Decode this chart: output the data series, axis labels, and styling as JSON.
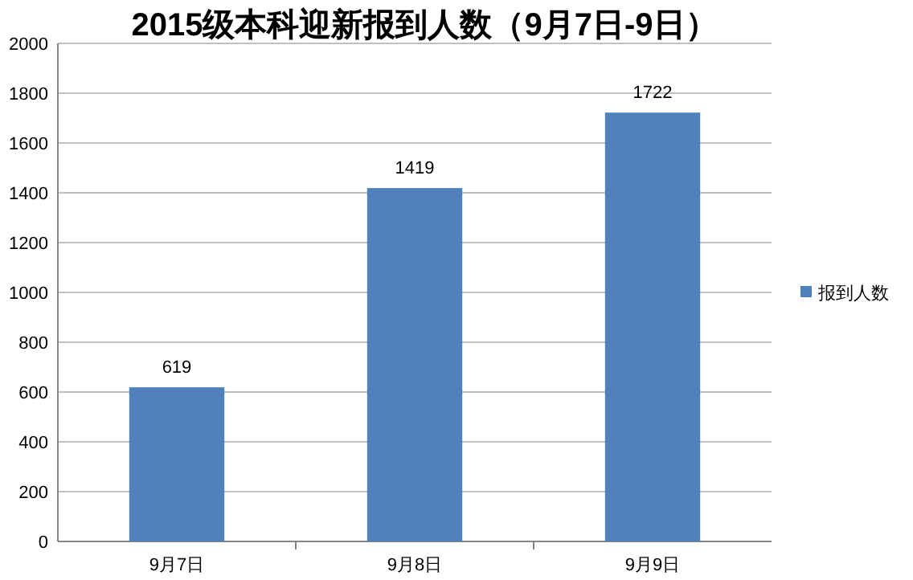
{
  "chart_data": {
    "type": "bar",
    "title": "2015级本科迎新报到人数（9月7日-9日）",
    "categories": [
      "9月7日",
      "9月8日",
      "9月9日"
    ],
    "series": [
      {
        "name": "报到人数",
        "color": "#4f81bd",
        "values": [
          619,
          1419,
          1722
        ]
      }
    ],
    "ylim": [
      0,
      2000
    ],
    "yticks": [
      0,
      200,
      400,
      600,
      800,
      1000,
      1200,
      1400,
      1600,
      1800,
      2000
    ],
    "grid": "y",
    "legend": "right",
    "data_labels": true
  }
}
